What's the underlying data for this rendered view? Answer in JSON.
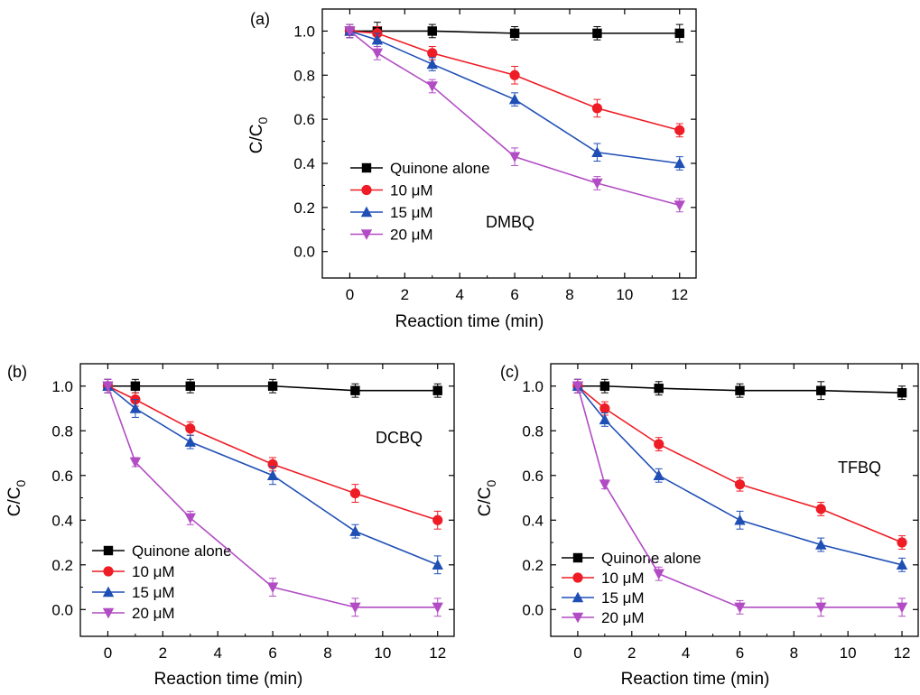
{
  "markers": {
    "colors": [
      "#000000",
      "#ee1c25",
      "#1f4fb5",
      "#b24cc4"
    ],
    "shapes": [
      "square",
      "circle",
      "triangle-up",
      "triangle-down"
    ]
  },
  "chart_data": [
    {
      "type": "line",
      "panel_label": "(a)",
      "annotation": "DMBQ",
      "xlabel": "Reaction time (min)",
      "ylabel": "C/C",
      "ylabel_sub": "0",
      "xlim": [
        -1,
        12.6
      ],
      "ylim": [
        -0.12,
        1.1
      ],
      "xticks": [
        0,
        2,
        4,
        6,
        8,
        10,
        12
      ],
      "xtick_labels": [
        "0",
        "2",
        "4",
        "6",
        "8",
        "10",
        "12"
      ],
      "yticks": [
        0,
        0.2,
        0.4,
        0.6,
        0.8,
        1.0
      ],
      "ytick_labels": [
        "0.0",
        "0.2",
        "0.4",
        "0.6",
        "0.8",
        "1.0"
      ],
      "legend_position": "center-left",
      "x": [
        0,
        1,
        3,
        6,
        9,
        12
      ],
      "series": [
        {
          "name": "Quinone alone",
          "values": [
            1.0,
            1.0,
            1.0,
            0.99,
            0.99,
            0.99
          ],
          "errors": [
            0.03,
            0.04,
            0.03,
            0.03,
            0.03,
            0.04
          ]
        },
        {
          "name": "10 μM",
          "values": [
            1.0,
            0.99,
            0.9,
            0.8,
            0.65,
            0.55
          ],
          "errors": [
            0.03,
            0.03,
            0.03,
            0.04,
            0.04,
            0.03
          ]
        },
        {
          "name": "15 μM",
          "values": [
            1.0,
            0.96,
            0.85,
            0.69,
            0.45,
            0.4
          ],
          "errors": [
            0.03,
            0.03,
            0.03,
            0.03,
            0.04,
            0.03
          ]
        },
        {
          "name": "20 μM",
          "values": [
            1.0,
            0.9,
            0.75,
            0.43,
            0.31,
            0.21
          ],
          "errors": [
            0.03,
            0.03,
            0.03,
            0.04,
            0.03,
            0.03
          ]
        }
      ]
    },
    {
      "type": "line",
      "panel_label": "(b)",
      "annotation": "DCBQ",
      "xlabel": "Reaction time (min)",
      "ylabel": "C/C",
      "ylabel_sub": "0",
      "xlim": [
        -1,
        12.6
      ],
      "ylim": [
        -0.12,
        1.1
      ],
      "xticks": [
        0,
        2,
        4,
        6,
        8,
        10,
        12
      ],
      "xtick_labels": [
        "0",
        "2",
        "4",
        "6",
        "8",
        "10",
        "12"
      ],
      "yticks": [
        0,
        0.2,
        0.4,
        0.6,
        0.8,
        1.0
      ],
      "ytick_labels": [
        "0.0",
        "0.2",
        "0.4",
        "0.6",
        "0.8",
        "1.0"
      ],
      "legend_position": "bottom-left",
      "x": [
        0,
        1,
        3,
        6,
        9,
        12
      ],
      "series": [
        {
          "name": "Quinone alone",
          "values": [
            1.0,
            1.0,
            1.0,
            1.0,
            0.98,
            0.98
          ],
          "errors": [
            0.03,
            0.03,
            0.03,
            0.03,
            0.03,
            0.03
          ]
        },
        {
          "name": "10 μM",
          "values": [
            1.0,
            0.94,
            0.81,
            0.65,
            0.52,
            0.4
          ],
          "errors": [
            0.03,
            0.03,
            0.03,
            0.03,
            0.04,
            0.04
          ]
        },
        {
          "name": "15 μM",
          "values": [
            1.0,
            0.9,
            0.75,
            0.6,
            0.35,
            0.2
          ],
          "errors": [
            0.03,
            0.04,
            0.03,
            0.04,
            0.03,
            0.04
          ]
        },
        {
          "name": "20 μM",
          "values": [
            1.0,
            0.66,
            0.41,
            0.1,
            0.01,
            0.01
          ],
          "errors": [
            0.03,
            0.02,
            0.03,
            0.04,
            0.04,
            0.04
          ]
        }
      ]
    },
    {
      "type": "line",
      "panel_label": "(c)",
      "annotation": "TFBQ",
      "xlabel": "Reaction time (min)",
      "ylabel": "C/C",
      "ylabel_sub": "0",
      "xlim": [
        -1,
        12.6
      ],
      "ylim": [
        -0.12,
        1.1
      ],
      "xticks": [
        0,
        2,
        4,
        6,
        8,
        10,
        12
      ],
      "xtick_labels": [
        "0",
        "2",
        "4",
        "6",
        "8",
        "10",
        "12"
      ],
      "yticks": [
        0,
        0.2,
        0.4,
        0.6,
        0.8,
        1.0
      ],
      "ytick_labels": [
        "0.0",
        "0.2",
        "0.4",
        "0.6",
        "0.8",
        "1.0"
      ],
      "legend_position": "bottom-left",
      "x": [
        0,
        1,
        3,
        6,
        9,
        12
      ],
      "series": [
        {
          "name": "Quinone alone",
          "values": [
            1.0,
            1.0,
            0.99,
            0.98,
            0.98,
            0.97
          ],
          "errors": [
            0.03,
            0.03,
            0.03,
            0.03,
            0.04,
            0.03
          ]
        },
        {
          "name": "10 μM",
          "values": [
            1.0,
            0.9,
            0.74,
            0.56,
            0.45,
            0.3
          ],
          "errors": [
            0.03,
            0.03,
            0.03,
            0.03,
            0.03,
            0.03
          ]
        },
        {
          "name": "15 μM",
          "values": [
            1.0,
            0.85,
            0.6,
            0.4,
            0.29,
            0.2
          ],
          "errors": [
            0.03,
            0.03,
            0.03,
            0.04,
            0.03,
            0.03
          ]
        },
        {
          "name": "20 μM",
          "values": [
            1.0,
            0.56,
            0.16,
            0.01,
            0.01,
            0.01
          ],
          "errors": [
            0.03,
            0.02,
            0.03,
            0.03,
            0.04,
            0.04
          ]
        }
      ]
    }
  ]
}
